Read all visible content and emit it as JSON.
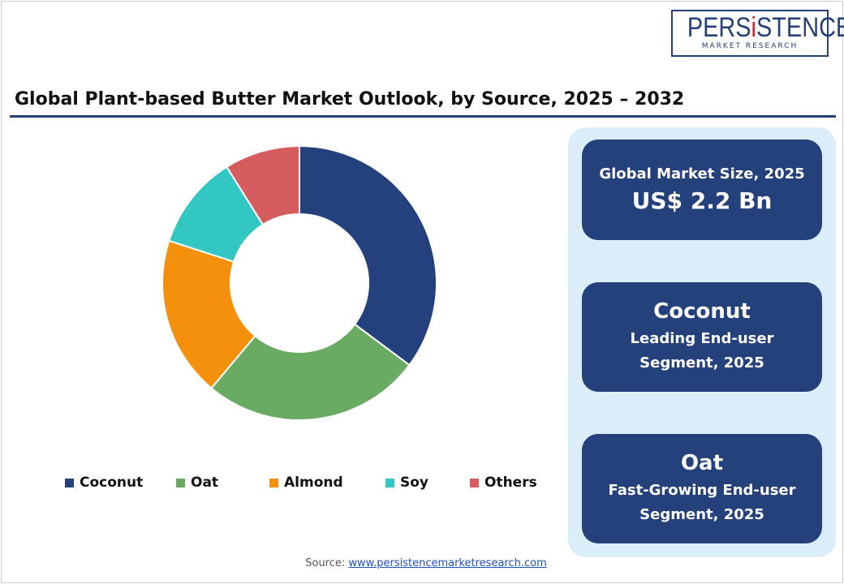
{
  "logo": {
    "text_main": "PERSISTENCE",
    "text_sub": "MARKET RESEARCH"
  },
  "title": "Global Plant-based Butter Market Outlook, by Source, 2025 – 2032",
  "chart_data": {
    "type": "donut",
    "categories": [
      "Coconut",
      "Oat",
      "Almond",
      "Soy",
      "Others"
    ],
    "values": [
      35.2,
      25.9,
      18.9,
      11.1,
      8.9
    ],
    "colors": [
      "#24417e",
      "#69ab63",
      "#f4900b",
      "#33c7c3",
      "#d55d60"
    ],
    "legend_position": "bottom"
  },
  "panel": {
    "market_size_label": "Global Market Size, 2025",
    "market_size_value": "US$ 2.2 Bn",
    "leading_name": "Coconut",
    "leading_line1": "Leading End-user",
    "leading_line2": "Segment, 2025",
    "fast_name": "Oat",
    "fast_line1": "Fast-Growing End-user",
    "fast_line2": "Segment, 2025"
  },
  "source": {
    "label": "Source:",
    "link": "www.persistencemarketresearch.com"
  }
}
